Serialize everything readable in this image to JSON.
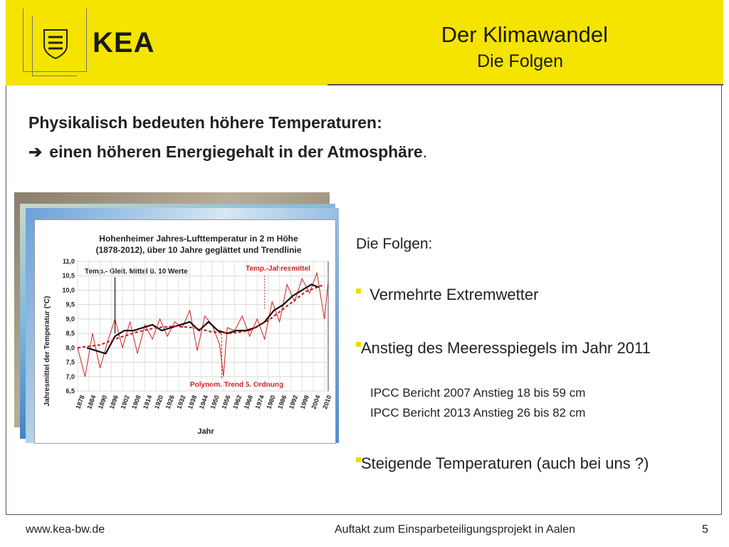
{
  "header": {
    "logo_text": "KEA",
    "title": "Der Klimawandel",
    "subtitle": "Die Folgen"
  },
  "content": {
    "heading_line1": "Physikalisch bedeuten höhere Temperaturen:",
    "heading_line2": "einen höheren Energiegehalt in der Atmosphäre",
    "heading_line2_end": ".",
    "folgen_title": "Die Folgen:",
    "bullets": [
      "Vermehrte Extremwetter",
      "Anstieg des Meeresspiegels im Jahr 2011",
      "Steigende Temperaturen (auch bei uns ?)"
    ],
    "sub_items": [
      "IPCC Bericht 2007 Anstieg 18 bis 59 cm",
      "IPCC Bericht 2013 Anstieg 26 bis 82 cm"
    ]
  },
  "chart_data": {
    "type": "line",
    "title": "Hohenheimer Jahres-Lufttemperatur in 2 m Höhe",
    "subtitle": "(1878-2012), über 10 Jahre geglättet und Trendlinie",
    "xlabel": "Jahr",
    "ylabel": "Jahresmittel der Temperatur (°C)",
    "ylim": [
      6.5,
      11.0
    ],
    "xlim": [
      1878,
      2012
    ],
    "yticks": [
      "6,5",
      "7,0",
      "7,5",
      "8,0",
      "8,5",
      "9,0",
      "9,5",
      "10,0",
      "10,5",
      "11,0"
    ],
    "xticks": [
      "1878",
      "1884",
      "1890",
      "1896",
      "1902",
      "1908",
      "1914",
      "1920",
      "1926",
      "1932",
      "1938",
      "1944",
      "1950",
      "1956",
      "1962",
      "1968",
      "1974",
      "1980",
      "1986",
      "1992",
      "1998",
      "2004",
      "2010"
    ],
    "annotations": [
      "Temp.- Gleit. Mittel ü. 10 Werte",
      "Temp.-Jahresmittel",
      "Polynom. Trend 5. Ordnung"
    ],
    "series": [
      {
        "name": "Temp.-Jahresmittel",
        "color": "#d02020",
        "x": [
          1878,
          1882,
          1886,
          1890,
          1894,
          1898,
          1902,
          1906,
          1910,
          1914,
          1918,
          1922,
          1926,
          1930,
          1934,
          1938,
          1942,
          1946,
          1950,
          1954,
          1956,
          1958,
          1962,
          1966,
          1970,
          1974,
          1978,
          1982,
          1986,
          1990,
          1994,
          1998,
          2002,
          2006,
          2010,
          2012
        ],
        "y": [
          8.0,
          7.0,
          8.5,
          7.3,
          8.2,
          9.0,
          8.0,
          8.9,
          7.8,
          8.8,
          8.3,
          9.0,
          8.4,
          8.9,
          8.7,
          9.3,
          7.9,
          9.1,
          8.8,
          8.1,
          7.0,
          8.7,
          8.6,
          9.1,
          8.4,
          9.0,
          8.3,
          9.6,
          8.9,
          10.2,
          9.6,
          10.4,
          9.9,
          10.6,
          9.0,
          10.3
        ]
      },
      {
        "name": "Temp.- Gleit. Mittel ü. 10 Werte",
        "color": "#111111",
        "x": [
          1883,
          1888,
          1893,
          1898,
          1903,
          1908,
          1913,
          1918,
          1923,
          1928,
          1933,
          1938,
          1943,
          1948,
          1953,
          1958,
          1963,
          1968,
          1973,
          1978,
          1983,
          1988,
          1993,
          1998,
          2003,
          2007
        ],
        "y": [
          8.0,
          7.9,
          7.8,
          8.4,
          8.6,
          8.6,
          8.7,
          8.8,
          8.6,
          8.7,
          8.8,
          8.9,
          8.6,
          8.9,
          8.6,
          8.5,
          8.6,
          8.6,
          8.7,
          8.9,
          9.3,
          9.5,
          9.8,
          10.0,
          10.2,
          10.1
        ]
      },
      {
        "name": "Polynom. Trend 5. Ordnung",
        "color": "#c01818",
        "x": [
          1878,
          1890,
          1900,
          1910,
          1920,
          1930,
          1940,
          1950,
          1960,
          1970,
          1980,
          1990,
          2000,
          2010
        ],
        "y": [
          8.0,
          8.1,
          8.35,
          8.55,
          8.7,
          8.75,
          8.7,
          8.55,
          8.5,
          8.6,
          8.95,
          9.45,
          9.95,
          10.2
        ]
      }
    ]
  },
  "footer": {
    "website": "www.kea-bw.de",
    "event": "Auftakt zum Einsparbeteiligungsprojekt in Aalen",
    "page": "5"
  }
}
